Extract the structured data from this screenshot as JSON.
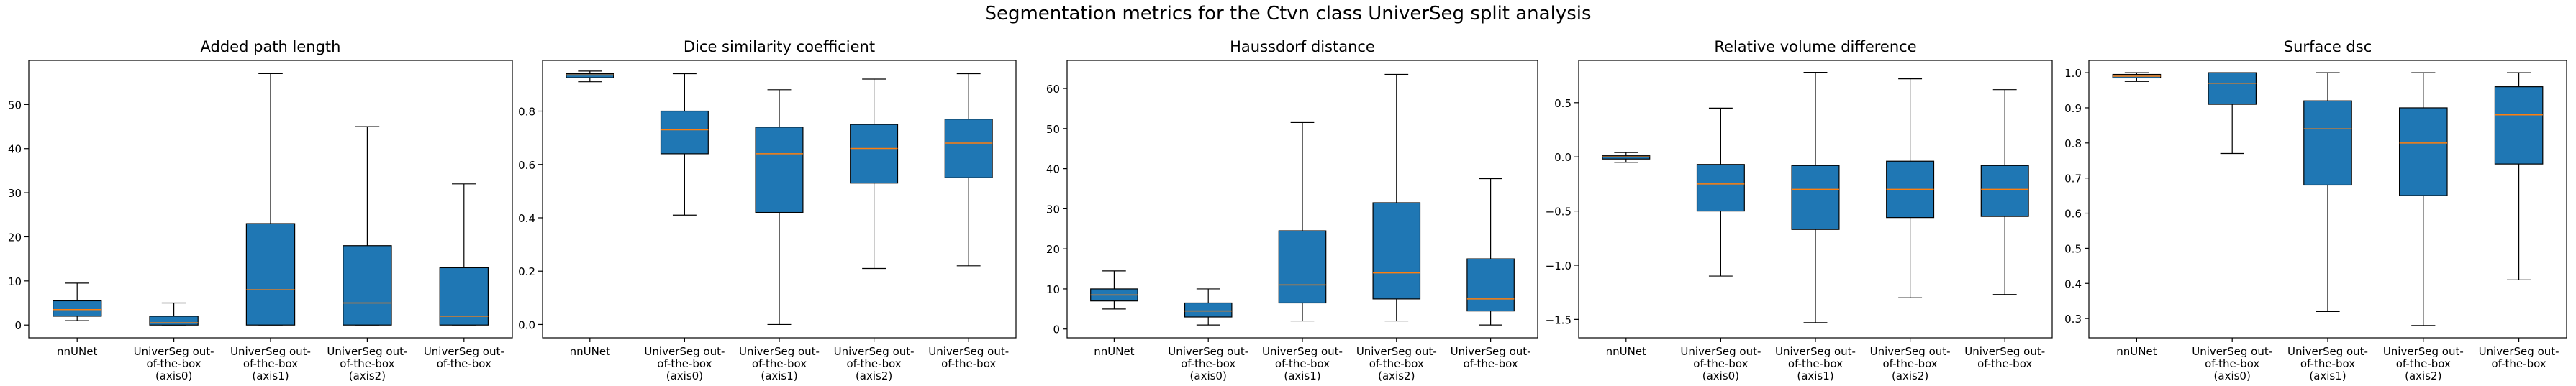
{
  "figure_title": "Segmentation metrics for the Ctvn class UniverSeg split analysis",
  "colors": {
    "box_fill": "#1f77b4",
    "median_line": "#ff7f0e",
    "whisker": "#000000",
    "frame": "#000000"
  },
  "chart_data": [
    {
      "type": "box",
      "title": "Added path length",
      "categories": [
        "nnUNet",
        "UniverSeg out-\nof-the-box\n(axis0)",
        "UniverSeg out-\nof-the-box\n(axis1)",
        "UniverSeg out-\nof-the-box\n(axis2)",
        "UniverSeg out-\nof-the-box"
      ],
      "ylim": [
        -2.9,
        60
      ],
      "yticks": [
        0,
        10,
        20,
        30,
        40,
        50
      ],
      "ytick_labels": [
        "0",
        "10",
        "20",
        "30",
        "40",
        "50"
      ],
      "boxes": [
        {
          "whislo": 1,
          "q1": 2,
          "med": 3.5,
          "q3": 5.5,
          "whishi": 9.5
        },
        {
          "whislo": 0,
          "q1": 0,
          "med": 0.5,
          "q3": 2,
          "whishi": 5
        },
        {
          "whislo": 0,
          "q1": 0,
          "med": 8,
          "q3": 23,
          "whishi": 57
        },
        {
          "whislo": 0,
          "q1": 0,
          "med": 5,
          "q3": 18,
          "whishi": 45
        },
        {
          "whislo": 0,
          "q1": 0,
          "med": 2,
          "q3": 13,
          "whishi": 32
        }
      ]
    },
    {
      "type": "box",
      "title": "Dice similarity coefficient",
      "categories": [
        "nnUNet",
        "UniverSeg out-\nof-the-box\n(axis0)",
        "UniverSeg out-\nof-the-box\n(axis1)",
        "UniverSeg out-\nof-the-box\n(axis2)",
        "UniverSeg out-\nof-the-box"
      ],
      "ylim": [
        -0.05,
        0.99
      ],
      "yticks": [
        0.0,
        0.2,
        0.4,
        0.6,
        0.8
      ],
      "ytick_labels": [
        "0.0",
        "0.2",
        "0.4",
        "0.6",
        "0.8"
      ],
      "boxes": [
        {
          "whislo": 0.91,
          "q1": 0.925,
          "med": 0.935,
          "q3": 0.94,
          "whishi": 0.95
        },
        {
          "whislo": 0.41,
          "q1": 0.64,
          "med": 0.73,
          "q3": 0.8,
          "whishi": 0.94
        },
        {
          "whislo": 0.0,
          "q1": 0.42,
          "med": 0.64,
          "q3": 0.74,
          "whishi": 0.88
        },
        {
          "whislo": 0.21,
          "q1": 0.53,
          "med": 0.66,
          "q3": 0.75,
          "whishi": 0.92
        },
        {
          "whislo": 0.22,
          "q1": 0.55,
          "med": 0.68,
          "q3": 0.77,
          "whishi": 0.94
        }
      ]
    },
    {
      "type": "box",
      "title": "Haussdorf distance",
      "categories": [
        "nnUNet",
        "UniverSeg out-\nof-the-box\n(axis0)",
        "UniverSeg out-\nof-the-box\n(axis1)",
        "UniverSeg out-\nof-the-box\n(axis2)",
        "UniverSeg out-\nof-the-box"
      ],
      "ylim": [
        -2.2,
        67
      ],
      "yticks": [
        0,
        10,
        20,
        30,
        40,
        50,
        60
      ],
      "ytick_labels": [
        "0",
        "10",
        "20",
        "30",
        "40",
        "50",
        "60"
      ],
      "boxes": [
        {
          "whislo": 5,
          "q1": 7,
          "med": 8.5,
          "q3": 10,
          "whishi": 14.5
        },
        {
          "whislo": 1,
          "q1": 3,
          "med": 4.5,
          "q3": 6.5,
          "whishi": 10
        },
        {
          "whislo": 2,
          "q1": 6.5,
          "med": 11,
          "q3": 24.5,
          "whishi": 51.5
        },
        {
          "whislo": 2,
          "q1": 7.5,
          "med": 14,
          "q3": 31.5,
          "whishi": 63.5
        },
        {
          "whislo": 1,
          "q1": 4.5,
          "med": 7.5,
          "q3": 17.5,
          "whishi": 37.5
        }
      ]
    },
    {
      "type": "box",
      "title": "Relative volume difference",
      "categories": [
        "nnUNet",
        "UniverSeg out-\nof-the-box\n(axis0)",
        "UniverSeg out-\nof-the-box\n(axis1)",
        "UniverSeg out-\nof-the-box\n(axis2)",
        "UniverSeg out-\nof-the-box"
      ],
      "ylim": [
        -1.67,
        0.89
      ],
      "yticks": [
        -1.5,
        -1.0,
        -0.5,
        0.0,
        0.5
      ],
      "ytick_labels": [
        "−1.5",
        "−1.0",
        "−0.5",
        "0.0",
        "0.5"
      ],
      "boxes": [
        {
          "whislo": -0.05,
          "q1": -0.02,
          "med": 0.0,
          "q3": 0.01,
          "whishi": 0.04
        },
        {
          "whislo": -1.1,
          "q1": -0.5,
          "med": -0.25,
          "q3": -0.07,
          "whishi": 0.45
        },
        {
          "whislo": -1.53,
          "q1": -0.67,
          "med": -0.3,
          "q3": -0.08,
          "whishi": 0.78
        },
        {
          "whislo": -1.3,
          "q1": -0.56,
          "med": -0.3,
          "q3": -0.04,
          "whishi": 0.72
        },
        {
          "whislo": -1.27,
          "q1": -0.55,
          "med": -0.3,
          "q3": -0.08,
          "whishi": 0.62
        }
      ]
    },
    {
      "type": "box",
      "title": "Surface dsc",
      "categories": [
        "nnUNet",
        "UniverSeg out-\nof-the-box\n(axis0)",
        "UniverSeg out-\nof-the-box\n(axis1)",
        "UniverSeg out-\nof-the-box\n(axis2)",
        "UniverSeg out-\nof-the-box"
      ],
      "ylim": [
        0.245,
        1.035
      ],
      "yticks": [
        0.3,
        0.4,
        0.5,
        0.6,
        0.7,
        0.8,
        0.9,
        1.0
      ],
      "ytick_labels": [
        "0.3",
        "0.4",
        "0.5",
        "0.6",
        "0.7",
        "0.8",
        "0.9",
        "1.0"
      ],
      "boxes": [
        {
          "whislo": 0.975,
          "q1": 0.985,
          "med": 0.99,
          "q3": 0.995,
          "whishi": 1.0
        },
        {
          "whislo": 0.77,
          "q1": 0.91,
          "med": 0.97,
          "q3": 1.0,
          "whishi": 1.0
        },
        {
          "whislo": 0.32,
          "q1": 0.68,
          "med": 0.84,
          "q3": 0.92,
          "whishi": 1.0
        },
        {
          "whislo": 0.28,
          "q1": 0.65,
          "med": 0.8,
          "q3": 0.9,
          "whishi": 1.0
        },
        {
          "whislo": 0.41,
          "q1": 0.74,
          "med": 0.88,
          "q3": 0.96,
          "whishi": 1.0
        }
      ]
    }
  ]
}
